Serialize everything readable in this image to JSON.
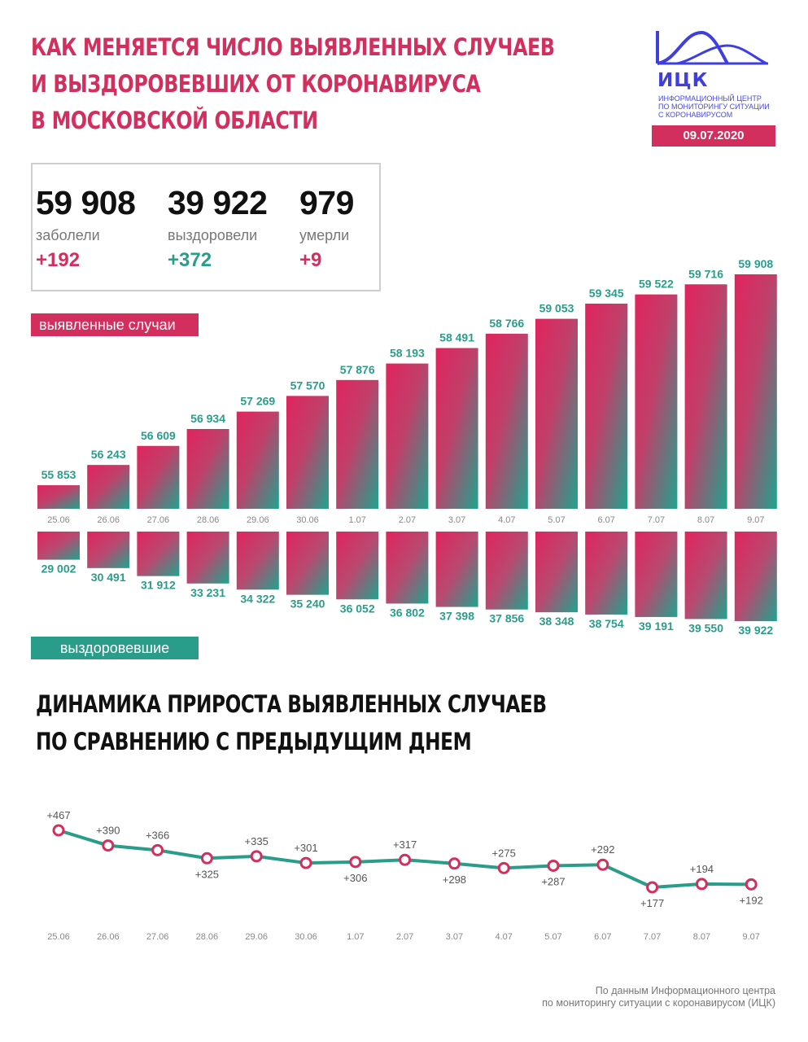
{
  "header": {
    "title_lines": [
      "КАК МЕНЯЕТСЯ ЧИСЛО ВЫЯВЛЕННЫХ СЛУЧАЕВ",
      "И ВЫЗДОРОВЕВШИХ ОТ КОРОНАВИРУСА",
      "В МОСКОВСКОЙ ОБЛАСТИ"
    ]
  },
  "logo": {
    "abbr": "ИЦК",
    "org_lines": [
      "ИНФОРМАЦИОННЫЙ ЦЕНТР",
      "ПО МОНИТОРИНГУ СИТУАЦИИ",
      "С КОРОНАВИРУСОМ"
    ],
    "color": "#3f3fe0"
  },
  "date": "09.07.2020",
  "stats": {
    "cases": {
      "value": "59 908",
      "label": "заболели",
      "delta": "+192"
    },
    "recovered": {
      "value": "39 922",
      "label": "выздоровели",
      "delta": "+372"
    },
    "deaths": {
      "value": "979",
      "label": "умерли",
      "delta": "+9"
    }
  },
  "labels": {
    "cases_tag": "выявленные случаи",
    "recovered_tag": "выздоровевшие"
  },
  "colors": {
    "red": "#d32f5e",
    "teal": "#2a9d8a"
  },
  "chart_data": [
    {
      "type": "bar",
      "categories": [
        "25.06",
        "26.06",
        "27.06",
        "28.06",
        "29.06",
        "30.06",
        "1.07",
        "2.07",
        "3.07",
        "4.07",
        "5.07",
        "6.07",
        "7.07",
        "8.07",
        "9.07"
      ],
      "series": [
        {
          "name": "выявленные случаи",
          "values": [
            55853,
            56243,
            56609,
            56934,
            57269,
            57570,
            57876,
            58193,
            58491,
            58766,
            59053,
            59345,
            59522,
            59716,
            59908
          ],
          "labels": [
            "55 853",
            "56 243",
            "56 609",
            "56 934",
            "57 269",
            "57 570",
            "57 876",
            "58 193",
            "58 491",
            "58 766",
            "59 053",
            "59 345",
            "59 522",
            "59 716",
            "59 908"
          ]
        },
        {
          "name": "выздоровевшие",
          "values": [
            29002,
            30491,
            31912,
            33231,
            34322,
            35240,
            36052,
            36802,
            37398,
            37856,
            38348,
            38754,
            39191,
            39550,
            39922
          ],
          "labels": [
            "29 002",
            "30 491",
            "31 912",
            "33 231",
            "34 322",
            "35 240",
            "36 052",
            "36 802",
            "37 398",
            "37 856",
            "38 348",
            "38 754",
            "39 191",
            "39 550",
            "39 922"
          ]
        }
      ]
    },
    {
      "type": "line",
      "title_lines": [
        "ДИНАМИКА ПРИРОСТА ВЫЯВЛЕННЫХ СЛУЧАЕВ",
        "ПО СРАВНЕНИЮ С ПРЕДЫДУЩИМ ДНЕМ"
      ],
      "categories": [
        "25.06",
        "26.06",
        "27.06",
        "28.06",
        "29.06",
        "30.06",
        "1.07",
        "2.07",
        "3.07",
        "4.07",
        "5.07",
        "6.07",
        "7.07",
        "8.07",
        "9.07"
      ],
      "values": [
        467,
        390,
        366,
        325,
        335,
        301,
        306,
        317,
        298,
        275,
        287,
        292,
        177,
        194,
        192
      ],
      "labels": [
        "+467",
        "+390",
        "+366",
        "+325",
        "+335",
        "+301",
        "+306",
        "+317",
        "+298",
        "+275",
        "+287",
        "+292",
        "+177",
        "+194",
        "+192"
      ],
      "label_positions": [
        "above",
        "above",
        "above",
        "below",
        "above",
        "above",
        "below",
        "above",
        "below",
        "above",
        "below",
        "above",
        "below",
        "above",
        "below"
      ]
    }
  ],
  "source": {
    "lines": [
      "По данным Информационного центра",
      "по мониторингу ситуации с коронавирусом (ИЦК)"
    ]
  }
}
